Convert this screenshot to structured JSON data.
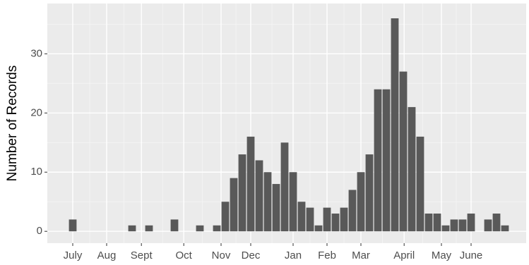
{
  "chart_data": {
    "type": "bar",
    "y_label": "Number of Records",
    "x": [
      0,
      7,
      9,
      12,
      15,
      17,
      18,
      19,
      20,
      21,
      22,
      23,
      24,
      25,
      26,
      27,
      28,
      29,
      30,
      31,
      32,
      33,
      34,
      35,
      36,
      37,
      38,
      39,
      40,
      41,
      42,
      43,
      44,
      45,
      46,
      47,
      49,
      50,
      51
    ],
    "values": [
      2,
      1,
      1,
      2,
      1,
      1,
      5,
      9,
      13,
      16,
      12,
      10,
      8,
      15,
      10,
      5,
      4,
      1,
      4,
      3,
      4,
      7,
      10,
      13,
      24,
      24,
      36,
      27,
      21,
      16,
      3,
      3,
      1,
      2,
      2,
      3,
      2,
      3,
      1
    ],
    "color": "#595959",
    "xlim": [
      -3,
      53.5
    ],
    "xticks": [
      {
        "value": 0,
        "label": "July"
      },
      {
        "value": 4,
        "label": "Aug"
      },
      {
        "value": 8.1,
        "label": "Sept"
      },
      {
        "value": 13.1,
        "label": "Oct"
      },
      {
        "value": 17.5,
        "label": "Nov"
      },
      {
        "value": 21,
        "label": "Dec"
      },
      {
        "value": 26,
        "label": "Jan"
      },
      {
        "value": 30,
        "label": "Feb"
      },
      {
        "value": 34,
        "label": "Mar"
      },
      {
        "value": 39.1,
        "label": "April"
      },
      {
        "value": 43.5,
        "label": "May"
      },
      {
        "value": 47,
        "label": "June"
      }
    ],
    "ylim": [
      -2,
      38.5
    ],
    "yticks": [
      0,
      10,
      20,
      30
    ],
    "grid": true
  }
}
